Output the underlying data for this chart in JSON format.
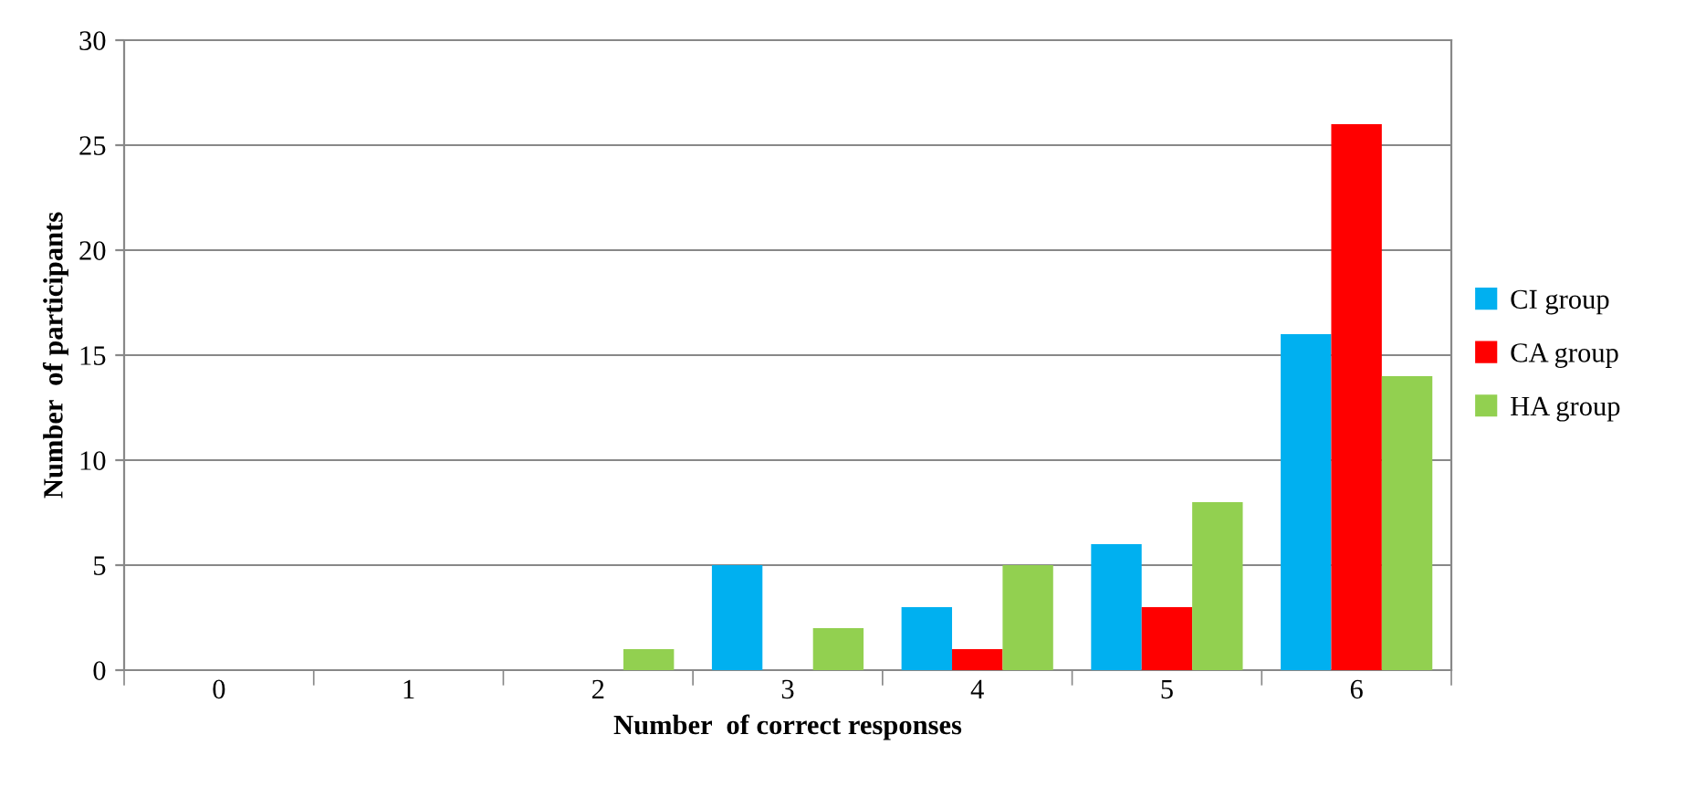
{
  "chart_data": {
    "type": "bar",
    "xlabel": "Number  of correct responses",
    "ylabel": "Number  of participants",
    "categories": [
      "0",
      "1",
      "2",
      "3",
      "4",
      "5",
      "6"
    ],
    "series": [
      {
        "name": "CI group",
        "color": "#00b0f0",
        "values": [
          0,
          0,
          0,
          5,
          3,
          6,
          16
        ]
      },
      {
        "name": "CA group",
        "color": "#ff0000",
        "values": [
          0,
          0,
          0,
          0,
          1,
          3,
          26
        ]
      },
      {
        "name": "HA group",
        "color": "#92d050",
        "values": [
          0,
          0,
          1,
          2,
          5,
          8,
          14
        ]
      }
    ],
    "ylim": [
      0,
      30
    ],
    "yticks": [
      0,
      5,
      10,
      15,
      20,
      25,
      30
    ],
    "grid": "y",
    "legend": "right"
  }
}
